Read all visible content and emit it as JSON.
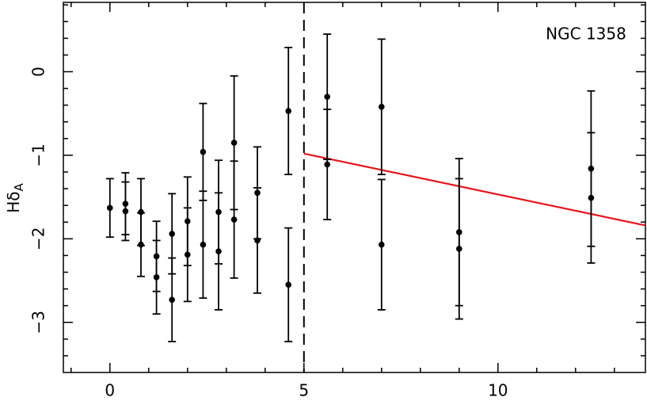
{
  "chart_data": {
    "type": "errorbar",
    "annotation": "NGC 1358",
    "ylabel": {
      "main": "Hδ",
      "sub": "A"
    },
    "x": [
      0,
      0.4,
      0.4,
      0.8,
      0.8,
      1.2,
      1.2,
      1.6,
      1.6,
      2.0,
      2.0,
      2.4,
      2.4,
      2.8,
      2.8,
      3.2,
      3.2,
      3.8,
      3.8,
      4.6,
      4.6,
      5.6,
      5.6,
      7,
      7,
      9,
      9,
      12.4,
      12.4
    ],
    "values": [
      -1.63,
      -1.58,
      -1.67,
      -1.68,
      -2.07,
      -2.21,
      -2.46,
      -1.94,
      -2.73,
      -1.79,
      -2.19,
      -0.96,
      -2.07,
      -1.68,
      -2.15,
      -0.85,
      -1.77,
      -1.45,
      -2.02,
      -0.47,
      -2.55,
      -0.3,
      -1.11,
      -0.42,
      -2.07,
      -1.92,
      -2.12,
      -1.16,
      -1.51
    ],
    "errors": [
      0.35,
      0.37,
      0.35,
      0.4,
      0.38,
      0.42,
      0.44,
      0.48,
      0.5,
      0.53,
      0.56,
      0.58,
      0.64,
      0.62,
      0.7,
      0.8,
      0.7,
      0.55,
      0.63,
      0.76,
      0.68,
      0.75,
      0.66,
      0.81,
      0.78,
      0.88,
      0.84,
      0.93,
      0.78
    ],
    "color": "#000000",
    "vline": 5,
    "fit": {
      "x": [
        5,
        13.8
      ],
      "y": [
        -0.98,
        -1.84
      ],
      "color": "#e8141c"
    },
    "xlim": [
      -1.2,
      13.8
    ],
    "ylim": [
      -3.6,
      0.83
    ],
    "xticks": [
      0,
      5,
      10
    ],
    "xminorticks": [
      -1,
      1,
      2,
      3,
      4,
      6,
      7,
      8,
      9,
      11,
      12,
      13
    ],
    "yticks": [
      {
        "value": -3,
        "label": "−3"
      },
      {
        "value": -2,
        "label": "−2"
      },
      {
        "value": -1,
        "label": "−1"
      },
      0
    ],
    "yminorticks": [
      -3.4,
      -3.2,
      -2.8,
      -2.6,
      -2.4,
      -2.2,
      -1.8,
      -1.6,
      -1.4,
      -1.2,
      -0.8,
      -0.6,
      -0.4,
      -0.2,
      0.2,
      0.4,
      0.6,
      0.8
    ]
  }
}
